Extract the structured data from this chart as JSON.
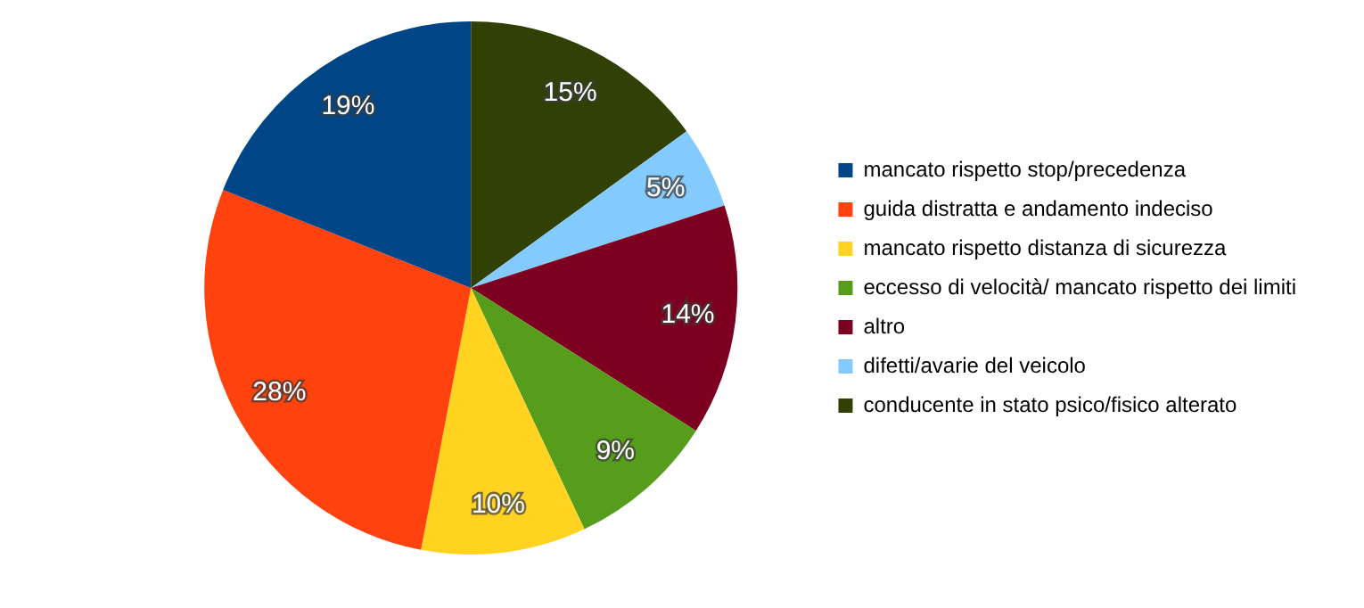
{
  "chart_data": {
    "type": "pie",
    "categories": [
      "mancato rispetto stop/precedenza",
      "guida distratta e andamento indeciso",
      "mancato rispetto distanza di sicurezza",
      "eccesso di velocità/ mancato rispetto dei limiti",
      "altro",
      "difetti/avarie del veicolo",
      "conducente in stato psico/fisico alterato"
    ],
    "values": [
      19,
      28,
      10,
      9,
      14,
      5,
      15
    ],
    "colors": [
      "#004586",
      "#ff420e",
      "#ffd320",
      "#579d1c",
      "#7e0021",
      "#83caff",
      "#314004"
    ],
    "value_labels": [
      "19%",
      "28%",
      "10%",
      "9%",
      "14%",
      "5%",
      "15%"
    ],
    "legend": "right"
  }
}
